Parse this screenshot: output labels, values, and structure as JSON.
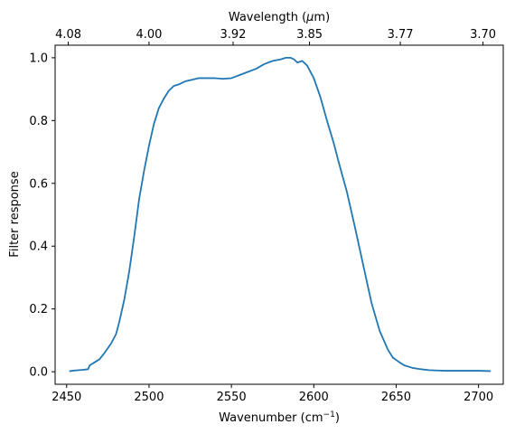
{
  "chart_data": {
    "type": "line",
    "title": "",
    "xlabel": "Wavenumber (cm",
    "xlabel_sup": "−1",
    "xlabel_end": ")",
    "ylabel": "Filter response",
    "top_xlabel": "Wavelength (",
    "top_xlabel_mu": "μ",
    "top_xlabel_end": "m)",
    "xlim": [
      2443,
      2715
    ],
    "ylim": [
      -0.04,
      1.04
    ],
    "x_ticks": [
      2450,
      2500,
      2550,
      2600,
      2650,
      2700
    ],
    "x_tick_labels": [
      "2450",
      "2500",
      "2550",
      "2600",
      "2650",
      "2700"
    ],
    "y_ticks": [
      0.0,
      0.2,
      0.4,
      0.6,
      0.8,
      1.0
    ],
    "y_tick_labels": [
      "0.0",
      "0.2",
      "0.4",
      "0.6",
      "0.8",
      "1.0"
    ],
    "top_ticks_wavelength_um": [
      4.08,
      4.0,
      3.92,
      3.85,
      3.77,
      3.7
    ],
    "top_tick_labels": [
      "4.08",
      "4.00",
      "3.92",
      "3.85",
      "3.77",
      "3.70"
    ],
    "grid": false,
    "line_color": "#1f77b4",
    "series": [
      {
        "x": [
          2452,
          2455,
          2460,
          2463,
          2464,
          2467,
          2470,
          2473,
          2477,
          2480,
          2482,
          2485,
          2488,
          2491,
          2494,
          2497,
          2500,
          2503,
          2506,
          2509,
          2512,
          2515,
          2518,
          2522,
          2526,
          2530,
          2535,
          2540,
          2545,
          2550,
          2555,
          2560,
          2565,
          2570,
          2575,
          2580,
          2583,
          2586,
          2588,
          2590,
          2593,
          2596,
          2600,
          2604,
          2608,
          2612,
          2615,
          2620,
          2625,
          2630,
          2635,
          2640,
          2645,
          2648,
          2652,
          2655,
          2660,
          2665,
          2670,
          2675,
          2680,
          2685,
          2690,
          2695,
          2700,
          2707
        ],
        "y": [
          0.002,
          0.004,
          0.006,
          0.008,
          0.02,
          0.03,
          0.04,
          0.06,
          0.09,
          0.12,
          0.16,
          0.23,
          0.32,
          0.43,
          0.55,
          0.64,
          0.72,
          0.79,
          0.84,
          0.87,
          0.895,
          0.91,
          0.915,
          0.925,
          0.93,
          0.935,
          0.935,
          0.935,
          0.933,
          0.935,
          0.945,
          0.955,
          0.965,
          0.98,
          0.99,
          0.995,
          1.0,
          1.0,
          0.995,
          0.985,
          0.99,
          0.975,
          0.935,
          0.875,
          0.8,
          0.73,
          0.67,
          0.575,
          0.46,
          0.34,
          0.22,
          0.13,
          0.07,
          0.045,
          0.03,
          0.02,
          0.012,
          0.008,
          0.005,
          0.004,
          0.003,
          0.003,
          0.003,
          0.003,
          0.003,
          0.002
        ]
      }
    ]
  }
}
